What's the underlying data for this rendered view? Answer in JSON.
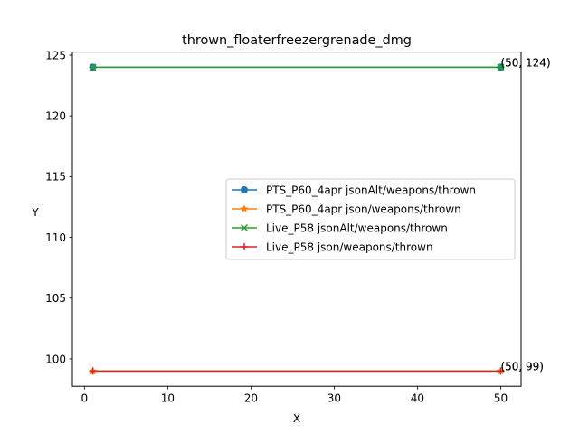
{
  "chart_data": {
    "type": "line",
    "title": "thrown_floaterfreezergrenade_dmg",
    "xlabel": "X",
    "ylabel": "Y",
    "xlim": [
      -1.45,
      52.45
    ],
    "ylim": [
      97.75,
      125.25
    ],
    "xticks": [
      0,
      10,
      20,
      30,
      40,
      50
    ],
    "yticks": [
      100,
      105,
      110,
      115,
      120,
      125
    ],
    "grid": false,
    "legend_position": "center-right",
    "series": [
      {
        "name": "PTS_P60_4apr jsonAlt/weapons/thrown",
        "color": "#1f77b4",
        "marker": "circle",
        "points": [
          [
            1,
            124
          ],
          [
            50,
            124
          ]
        ]
      },
      {
        "name": "PTS_P60_4apr json/weapons/thrown",
        "color": "#ff7f0e",
        "marker": "star",
        "points": [
          [
            1,
            99
          ],
          [
            50,
            99
          ]
        ]
      },
      {
        "name": "Live_P58 jsonAlt/weapons/thrown",
        "color": "#2ca02c",
        "marker": "x",
        "points": [
          [
            1,
            124
          ],
          [
            50,
            124
          ]
        ]
      },
      {
        "name": "Live_P58 json/weapons/thrown",
        "color": "#d62728",
        "marker": "plus",
        "points": [
          [
            1,
            99
          ],
          [
            50,
            99
          ]
        ]
      }
    ],
    "annotations": [
      {
        "text": "(50, 124)",
        "x": 50,
        "y": 124
      },
      {
        "text": "(50, 124)",
        "x": 50,
        "y": 124
      },
      {
        "text": "(50, 99)",
        "x": 50,
        "y": 99
      },
      {
        "text": "(50, 99)",
        "x": 50,
        "y": 99
      }
    ]
  }
}
